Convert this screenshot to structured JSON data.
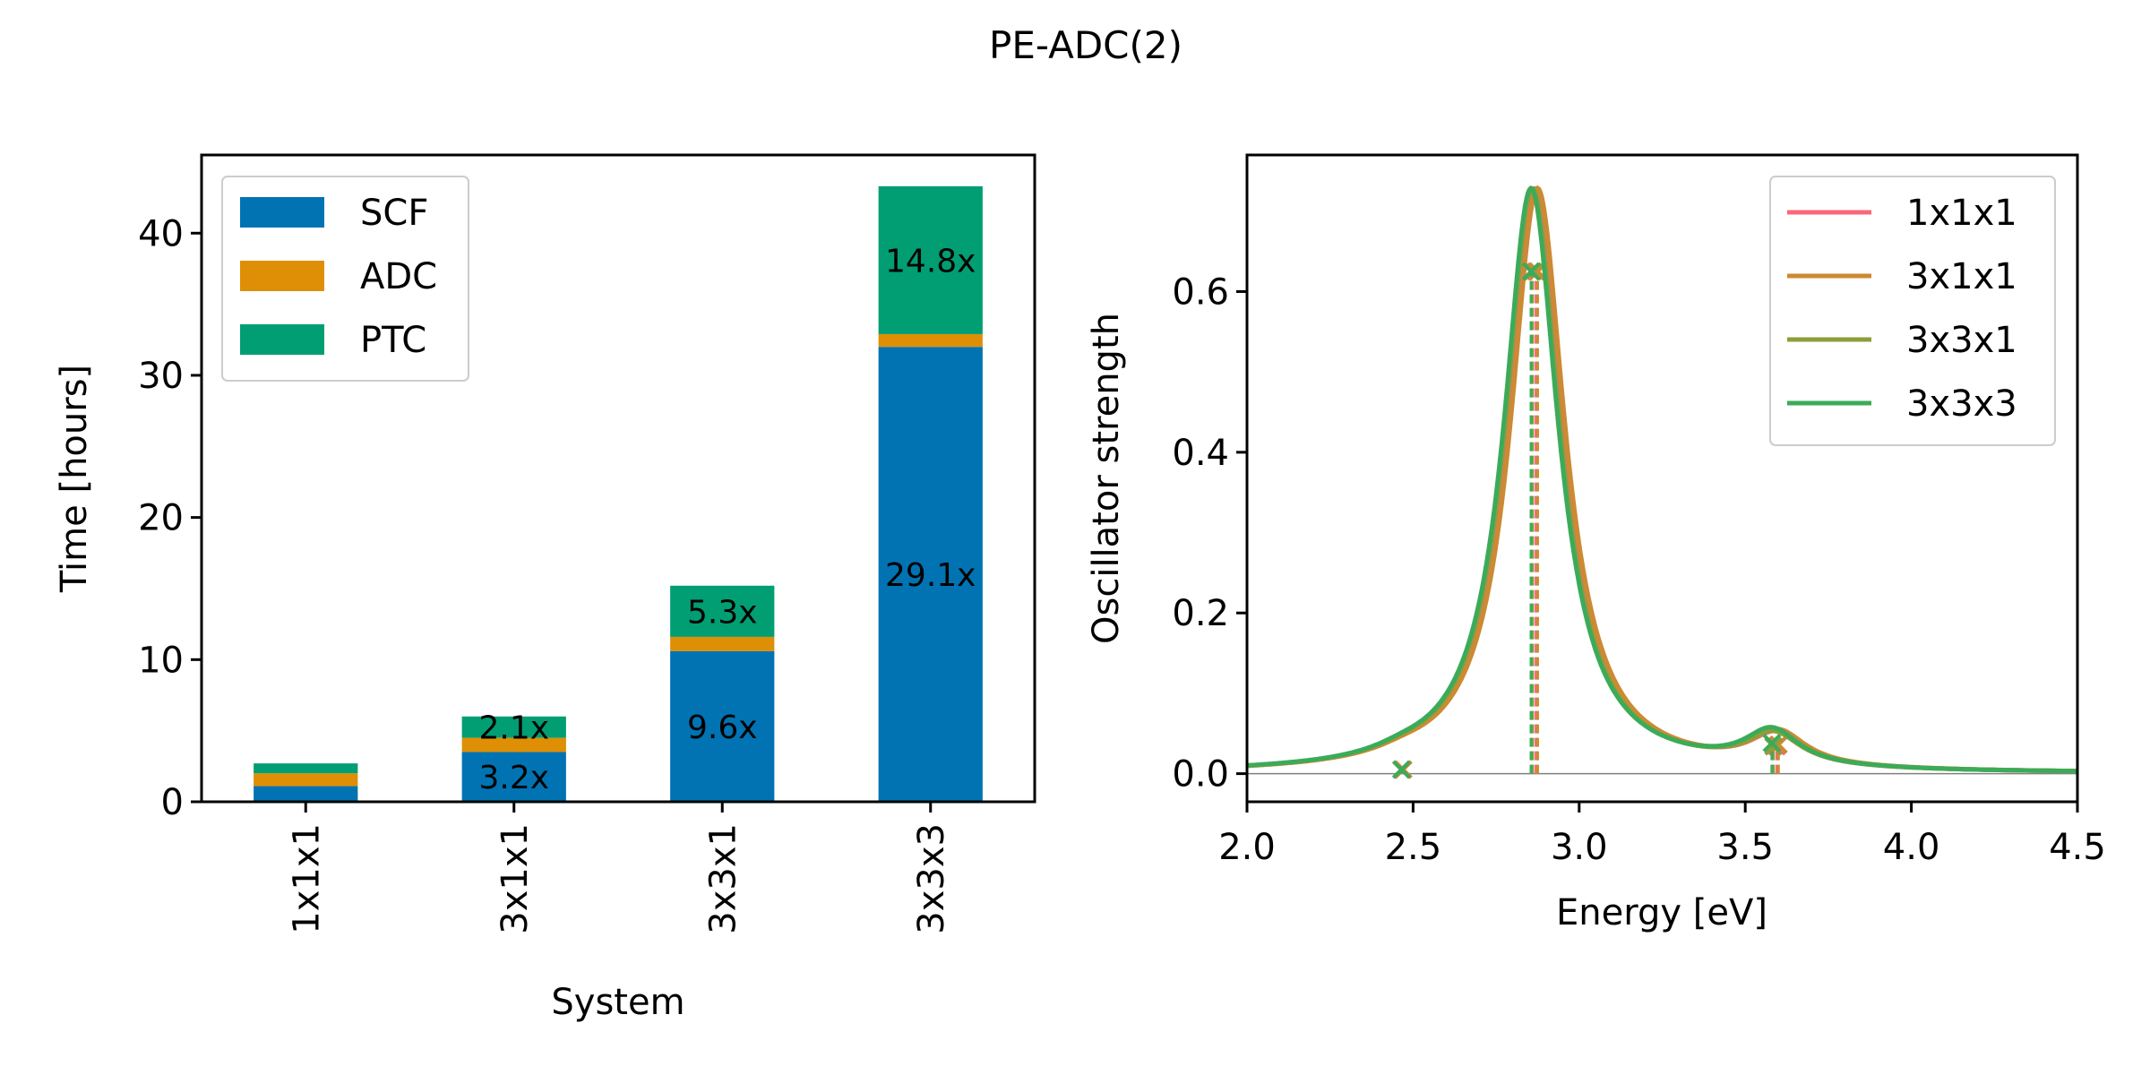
{
  "figure_title": "PE-ADC(2)",
  "colors": {
    "SCF": "#0173b2",
    "ADC": "#de8f05",
    "PTC": "#029e73",
    "1x1x1": "#f8687a",
    "3x1x1": "#cc8a32",
    "3x3x1": "#8d9e3a",
    "3x3x3": "#3bab5a"
  },
  "chart_data": [
    {
      "type": "bar",
      "stacked": true,
      "categories": [
        "1x1x1",
        "3x1x1",
        "3x3x1",
        "3x3x3"
      ],
      "series": [
        {
          "name": "SCF",
          "values": [
            1.1,
            3.5,
            10.6,
            32.0
          ]
        },
        {
          "name": "ADC",
          "values": [
            0.9,
            1.0,
            1.0,
            0.9
          ]
        },
        {
          "name": "PTC",
          "values": [
            0.7,
            1.5,
            3.6,
            10.4
          ]
        }
      ],
      "annotations": [
        {
          "category": "3x1x1",
          "series": "SCF",
          "text": "3.2x"
        },
        {
          "category": "3x1x1",
          "series": "PTC",
          "text": "2.1x"
        },
        {
          "category": "3x3x1",
          "series": "SCF",
          "text": "9.6x"
        },
        {
          "category": "3x3x1",
          "series": "PTC",
          "text": "5.3x"
        },
        {
          "category": "3x3x3",
          "series": "SCF",
          "text": "29.1x"
        },
        {
          "category": "3x3x3",
          "series": "PTC",
          "text": "14.8x"
        }
      ],
      "xlabel": "System",
      "ylabel": "Time [hours]",
      "ylim": [
        0,
        45.5
      ],
      "yticks": [
        0,
        10,
        20,
        30,
        40
      ],
      "legend": "top-left",
      "grid": false
    },
    {
      "type": "line",
      "xlabel": "Energy [eV]",
      "ylabel": "Oscillator strength",
      "xlim": [
        2.0,
        4.5
      ],
      "ylim": [
        -0.035,
        0.77
      ],
      "xticks": [
        2.0,
        2.5,
        3.0,
        3.5,
        4.0,
        4.5
      ],
      "yticks": [
        0.0,
        0.2,
        0.4,
        0.6
      ],
      "legend": "top-right",
      "grid": false,
      "series": [
        {
          "name": "1x1x1",
          "peaks": [
            {
              "energy": 2.87,
              "strength": 0.625
            },
            {
              "energy": 3.595,
              "strength": 0.034
            },
            {
              "energy": 2.47,
              "strength": 0.005
            }
          ]
        },
        {
          "name": "3x1x1",
          "peaks": [
            {
              "energy": 2.875,
              "strength": 0.625
            },
            {
              "energy": 3.6,
              "strength": 0.036
            },
            {
              "energy": 2.47,
              "strength": 0.005
            }
          ]
        },
        {
          "name": "3x3x1",
          "peaks": [
            {
              "energy": 2.86,
              "strength": 0.625
            },
            {
              "energy": 3.585,
              "strength": 0.034
            },
            {
              "energy": 2.465,
              "strength": 0.005
            }
          ]
        },
        {
          "name": "3x3x3",
          "peaks": [
            {
              "energy": 2.855,
              "strength": 0.625
            },
            {
              "energy": 3.58,
              "strength": 0.038
            },
            {
              "energy": 2.465,
              "strength": 0.005
            }
          ]
        }
      ]
    }
  ]
}
